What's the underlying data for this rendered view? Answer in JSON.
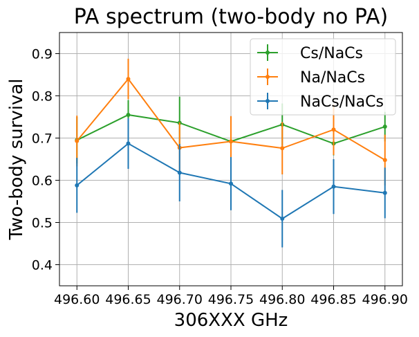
{
  "chart_data": {
    "type": "line",
    "title": "PA spectrum (two-body no PA)",
    "xlabel": "306XXX GHz",
    "ylabel": "Two-body survival",
    "x": [
      496.6,
      496.65,
      496.7,
      496.75,
      496.8,
      496.85,
      496.9
    ],
    "xticks": [
      "496.60",
      "496.65",
      "496.70",
      "496.75",
      "496.80",
      "496.85",
      "496.90"
    ],
    "yticks": [
      "0.4",
      "0.5",
      "0.6",
      "0.7",
      "0.8",
      "0.9"
    ],
    "xlim": [
      496.583,
      496.917
    ],
    "ylim": [
      0.35,
      0.95
    ],
    "grid": true,
    "legend_position": "top-right",
    "error_bars": true,
    "series": [
      {
        "name": "Cs/NaCs",
        "color": "#2ca02c",
        "values": [
          0.695,
          0.755,
          0.736,
          0.692,
          0.732,
          0.687,
          0.727
        ],
        "errors": [
          0.055,
          0.035,
          0.062,
          0.058,
          0.05,
          0.028,
          0.035
        ]
      },
      {
        "name": "Na/NaCs",
        "color": "#ff7f0e",
        "values": [
          0.693,
          0.84,
          0.677,
          0.692,
          0.676,
          0.72,
          0.648
        ],
        "errors": [
          0.06,
          0.048,
          0.06,
          0.06,
          0.062,
          0.06,
          0.06
        ]
      },
      {
        "name": "NaCs/NaCs",
        "color": "#1f77b4",
        "values": [
          0.588,
          0.687,
          0.618,
          0.592,
          0.509,
          0.585,
          0.57
        ],
        "errors": [
          0.065,
          0.06,
          0.068,
          0.063,
          0.068,
          0.065,
          0.06
        ]
      }
    ]
  }
}
